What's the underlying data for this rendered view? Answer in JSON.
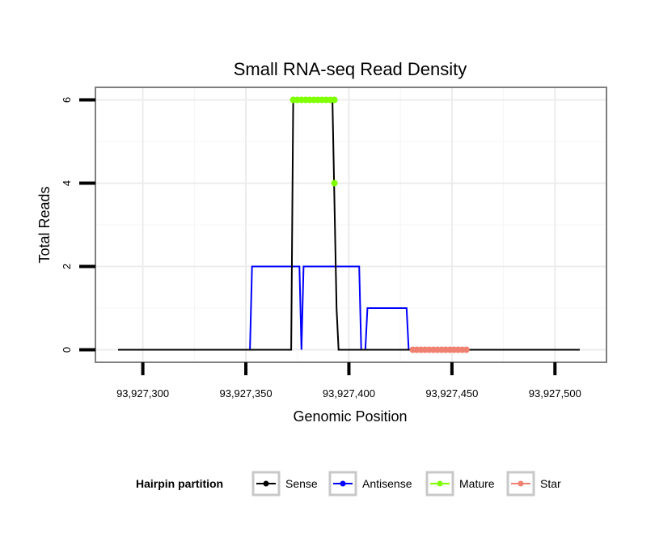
{
  "chart_data": {
    "type": "line",
    "title": "Small RNA-seq Read Density",
    "xlabel": "Genomic Position",
    "ylabel": "Total Reads",
    "xlim": [
      93927277,
      93927525
    ],
    "ylim": [
      -0.3,
      6.3
    ],
    "x_ticks": [
      93927300,
      93927350,
      93927400,
      93927450,
      93927500
    ],
    "x_tick_labels": [
      "93,927,300",
      "93,927,350",
      "93,927,400",
      "93,927,450",
      "93,927,500"
    ],
    "y_ticks": [
      0,
      2,
      4,
      6
    ],
    "y_tick_labels": [
      "0",
      "2",
      "4",
      "6"
    ],
    "grid": true,
    "legend": {
      "title": "Hairpin partition",
      "placement": "bottom",
      "entries": [
        "Sense",
        "Antisense",
        "Mature",
        "Star"
      ]
    },
    "series": [
      {
        "name": "Sense",
        "color": "#000000",
        "kind": "line",
        "x": [
          93927288,
          93927372,
          93927373,
          93927392,
          93927394,
          93927395,
          93927512
        ],
        "y": [
          0,
          0,
          6,
          6,
          1,
          0,
          0
        ]
      },
      {
        "name": "Antisense",
        "color": "#0000ff",
        "kind": "line",
        "x": [
          93927352,
          93927353,
          93927376,
          93927377,
          93927378,
          93927405,
          93927406,
          93927408,
          93927409,
          93927428,
          93927429,
          93927512
        ],
        "y": [
          0,
          2,
          2,
          0,
          2,
          2,
          0,
          0,
          1,
          1,
          0,
          0
        ]
      },
      {
        "name": "Mature",
        "color": "#7fff00",
        "kind": "points",
        "x": [
          93927373,
          93927375,
          93927377,
          93927379,
          93927381,
          93927383,
          93927385,
          93927387,
          93927389,
          93927391,
          93927393,
          93927393
        ],
        "y": [
          6,
          6,
          6,
          6,
          6,
          6,
          6,
          6,
          6,
          6,
          6,
          4
        ]
      },
      {
        "name": "Star",
        "color": "#f08070",
        "kind": "points",
        "x": [
          93927431,
          93927433,
          93927435,
          93927437,
          93927439,
          93927441,
          93927443,
          93927445,
          93927447,
          93927449,
          93927451,
          93927453,
          93927455,
          93927457
        ],
        "y": [
          0,
          0,
          0,
          0,
          0,
          0,
          0,
          0,
          0,
          0,
          0,
          0,
          0,
          0
        ]
      }
    ]
  }
}
